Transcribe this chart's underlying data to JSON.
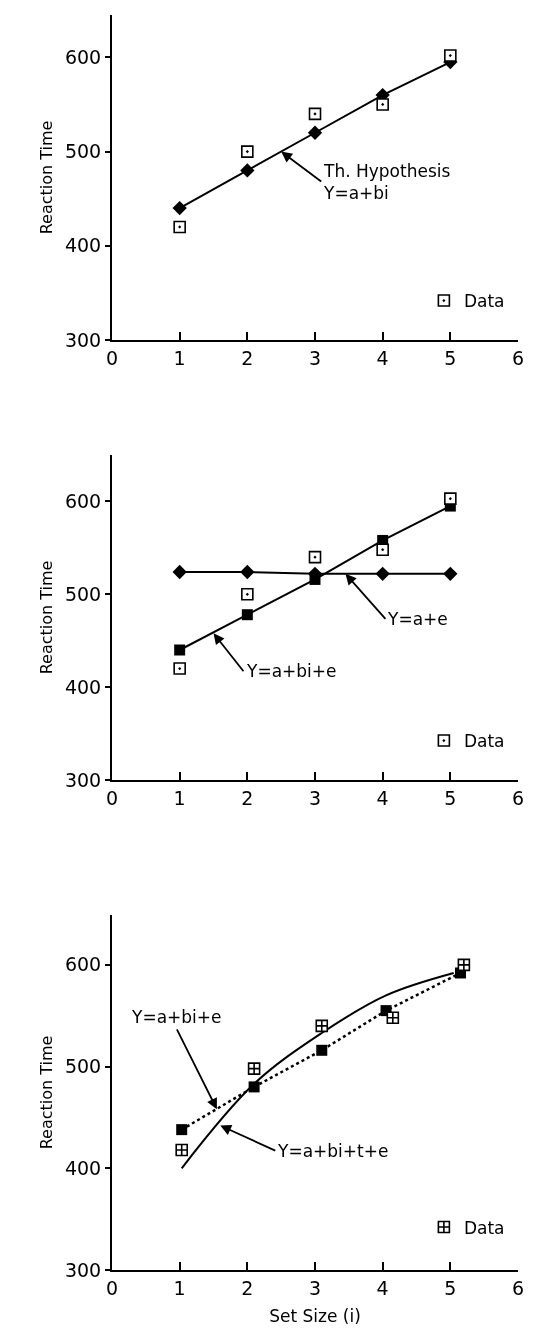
{
  "chart_data": [
    {
      "type": "line",
      "ylabel": "Reaction Time",
      "xlim": [
        0,
        6
      ],
      "ylim": [
        300,
        645
      ],
      "xticks": [
        0,
        1,
        2,
        3,
        4,
        5,
        6
      ],
      "yticks": [
        300,
        400,
        500,
        600
      ],
      "legend": "bottom right",
      "series": [
        {
          "name": "Data",
          "type": "scatter",
          "marker": "square",
          "color": "#000000",
          "x": [
            1,
            2,
            3,
            4,
            5
          ],
          "values": [
            420,
            500,
            540,
            550,
            602
          ]
        },
        {
          "marker": "diamond",
          "line_style": "solid",
          "color": "#000000",
          "x": [
            1,
            2,
            3,
            4,
            5
          ],
          "values": [
            440,
            480,
            520,
            560,
            595
          ]
        }
      ],
      "annotations": [
        {
          "text": "Th. Hypothesis\nY=a+bi",
          "x": 2.5,
          "y": 500
        }
      ]
    },
    {
      "type": "line",
      "ylabel": "Reaction Time",
      "xlim": [
        0,
        6
      ],
      "ylim": [
        300,
        650
      ],
      "xticks": [
        0,
        1,
        2,
        3,
        4,
        5,
        6
      ],
      "yticks": [
        300,
        400,
        500,
        600
      ],
      "legend": "bottom right",
      "series": [
        {
          "name": "Data",
          "type": "scatter",
          "marker": "square",
          "color": "#000000",
          "x": [
            1,
            2,
            3,
            4,
            5
          ],
          "values": [
            420,
            500,
            540,
            548,
            603
          ]
        },
        {
          "marker": "square",
          "line_style": "solid",
          "color": "#000000",
          "x": [
            1,
            2,
            3,
            4,
            5
          ],
          "values": [
            440,
            478,
            516,
            558,
            595
          ]
        },
        {
          "marker": "diamond",
          "line_style": "solid",
          "color": "#000000",
          "x": [
            1,
            2,
            3,
            4,
            5
          ],
          "values": [
            524,
            524,
            522,
            522,
            522
          ]
        }
      ],
      "annotations": [
        {
          "text": "Y=a+e",
          "x": 3.45,
          "y": 522
        },
        {
          "text": "Y=a+bi+e",
          "x": 1.5,
          "y": 458
        }
      ]
    },
    {
      "type": "line",
      "ylabel": "Reaction Time",
      "xlabel": "Set Size (i)",
      "xlim": [
        0,
        6
      ],
      "ylim": [
        300,
        649
      ],
      "xticks": [
        0,
        1,
        2,
        3,
        4,
        5,
        6
      ],
      "yticks": [
        300,
        400,
        500,
        600
      ],
      "legend": "bottom right",
      "series": [
        {
          "name": "Data",
          "type": "scatter",
          "marker": "cross",
          "color": "#000000",
          "x": [
            1.03,
            2.1,
            3.1,
            4.15,
            5.2
          ],
          "values": [
            418,
            498,
            540,
            548,
            600
          ]
        },
        {
          "marker": "square",
          "line_style": "dotted",
          "color": "#000000",
          "x": [
            1.03,
            2.1,
            3.1,
            4.05,
            5.15
          ],
          "values": [
            438,
            480,
            516,
            555,
            592
          ]
        },
        {
          "marker": "none",
          "line_style": "solid",
          "color": "#000000",
          "x": [
            1.03,
            2.1,
            3.1,
            4.05,
            5.05
          ],
          "values": [
            400,
            483,
            533,
            570,
            592
          ]
        }
      ],
      "annotations": [
        {
          "text": "Y=a+bi+e",
          "x": 1.55,
          "y": 458
        },
        {
          "text": "Y=a+bi+t+e",
          "x": 1.6,
          "y": 442
        }
      ]
    }
  ]
}
